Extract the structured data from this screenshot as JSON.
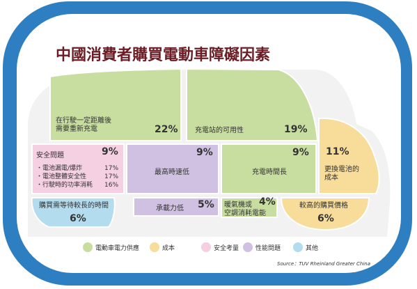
{
  "chart_data": {
    "type": "treemap",
    "title": "中國消費者購買電動車障礙因素",
    "source": "Source：TUV Rheinland Greater China",
    "legend": [
      {
        "key": "power",
        "label": "電動車電力供應",
        "color": "#c8dea0"
      },
      {
        "key": "cost",
        "label": "成本",
        "color": "#f7dc9a"
      },
      {
        "key": "safety",
        "label": "安全考量",
        "color": "#f5cfe2"
      },
      {
        "key": "performance",
        "label": "性能問題",
        "color": "#d0c0e2"
      },
      {
        "key": "other",
        "label": "其他",
        "color": "#b3dcef"
      }
    ],
    "items": [
      {
        "id": "range",
        "category": "power",
        "label": [
          "在行駛一定距離後",
          "需要重新充電"
        ],
        "value": "22%"
      },
      {
        "id": "stations",
        "category": "power",
        "label": [
          "充電站的可用性"
        ],
        "value": "19%"
      },
      {
        "id": "battery",
        "category": "cost",
        "label": [
          "更換電池的",
          "成本"
        ],
        "value": "11%"
      },
      {
        "id": "safety",
        "category": "safety",
        "label": [
          "安全問題"
        ],
        "value": "9%",
        "sub": [
          {
            "label": "・電池漏電/爆炸",
            "value": "17%"
          },
          {
            "label": "・電池整體安全性",
            "value": "17%"
          },
          {
            "label": "・行駛時的功率消耗",
            "value": "16%"
          }
        ]
      },
      {
        "id": "speed",
        "category": "performance",
        "label": [
          "最高時速低"
        ],
        "value": "9%"
      },
      {
        "id": "chargetime",
        "category": "power",
        "label": [
          "充電時間長"
        ],
        "value": "9%"
      },
      {
        "id": "wait",
        "category": "other",
        "label": [
          "購買需等待較長的時間"
        ],
        "value": "6%"
      },
      {
        "id": "load",
        "category": "performance",
        "label": [
          "承載力低"
        ],
        "value": "5%"
      },
      {
        "id": "hvac",
        "category": "power",
        "label": [
          "暖氣機或",
          "空調消耗電能"
        ],
        "value": "4%"
      },
      {
        "id": "price",
        "category": "cost",
        "label": [
          "較高的購買價格"
        ],
        "value": "6%"
      }
    ]
  }
}
